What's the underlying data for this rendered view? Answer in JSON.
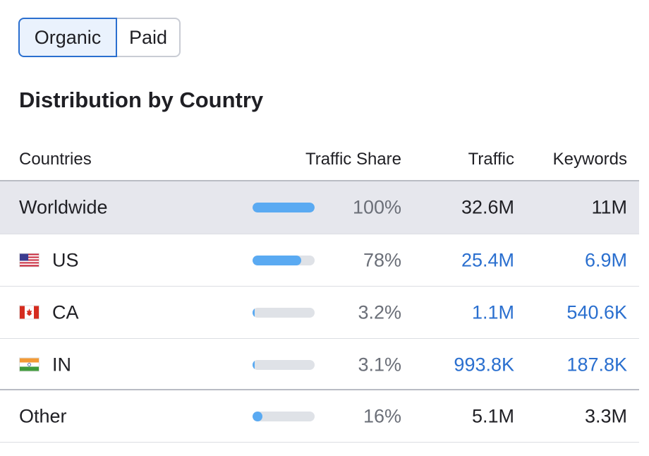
{
  "toggle": {
    "organic_label": "Organic",
    "paid_label": "Paid"
  },
  "title": "Distribution by Country",
  "headers": {
    "countries": "Countries",
    "traffic_share": "Traffic Share",
    "traffic": "Traffic",
    "keywords": "Keywords"
  },
  "rows": [
    {
      "name": "Worldwide",
      "share_label": "100%",
      "share_value": 100,
      "traffic": "32.6M",
      "keywords": "11M"
    },
    {
      "name": "US",
      "share_label": "78%",
      "share_value": 78,
      "traffic": "25.4M",
      "keywords": "6.9M"
    },
    {
      "name": "CA",
      "share_label": "3.2%",
      "share_value": 3.2,
      "traffic": "1.1M",
      "keywords": "540.6K"
    },
    {
      "name": "IN",
      "share_label": "3.1%",
      "share_value": 3.1,
      "traffic": "993.8K",
      "keywords": "187.8K"
    },
    {
      "name": "Other",
      "share_label": "16%",
      "share_value": 16,
      "traffic": "5.1M",
      "keywords": "3.3M"
    }
  ],
  "colors": {
    "bar_fill": "#5aaaf2",
    "bar_track": "#dfe2e7",
    "link": "#2a6fcf",
    "active_toggle_bg": "#eaf2fd",
    "active_toggle_border": "#2a6fcf",
    "worldwide_bg": "#e6e7ed"
  }
}
